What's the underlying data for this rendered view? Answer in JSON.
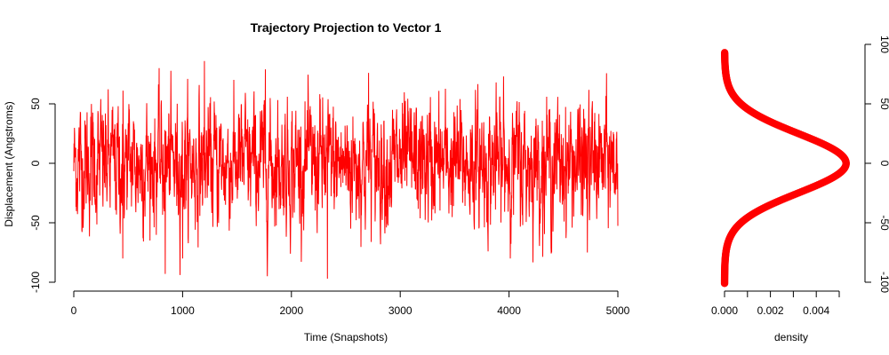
{
  "chart_data": [
    {
      "type": "line",
      "title": "Trajectory Projection to Vector 1",
      "xlabel": "Time (Snapshots)",
      "ylabel": "Displacement (Angstroms)",
      "xlim": [
        0,
        5000
      ],
      "ylim": [
        -100,
        85
      ],
      "x_ticks": [
        0,
        1000,
        2000,
        3000,
        4000,
        5000
      ],
      "y_ticks": [
        -100,
        -50,
        0,
        50
      ],
      "grid": false,
      "series": [
        {
          "color": "#ff0000",
          "n_points": 5000,
          "approx_mean": 0,
          "approx_sd": 25,
          "extremes": [
            {
              "x": 450,
              "y": -80
            },
            {
              "x": 840,
              "y": -93
            },
            {
              "x": 1000,
              "y": -80
            },
            {
              "x": 1200,
              "y": 86
            },
            {
              "x": 1760,
              "y": 79
            },
            {
              "x": 2330,
              "y": -97
            },
            {
              "x": 2710,
              "y": 76
            },
            {
              "x": 3950,
              "y": 73
            },
            {
              "x": 4720,
              "y": -75
            }
          ]
        }
      ]
    },
    {
      "type": "line",
      "title": "",
      "xlabel": "density",
      "ylabel": "",
      "xlim": [
        0,
        0.0058
      ],
      "ylim": [
        -100,
        85
      ],
      "x_ticks_labeled": [
        "0.000",
        "0.002",
        "0.004"
      ],
      "x_ticks_minor": [
        0.001,
        0.003,
        0.005
      ],
      "y_ticks": [
        -100,
        -50,
        0,
        50,
        100
      ],
      "y_axis_side": "right",
      "grid": false,
      "series": [
        {
          "color": "#ff0000",
          "style": "points",
          "distribution": "gaussian",
          "mean": 0,
          "sd": 25,
          "peak_density": 0.0053,
          "y_range": [
            -101,
            93
          ]
        }
      ]
    }
  ]
}
